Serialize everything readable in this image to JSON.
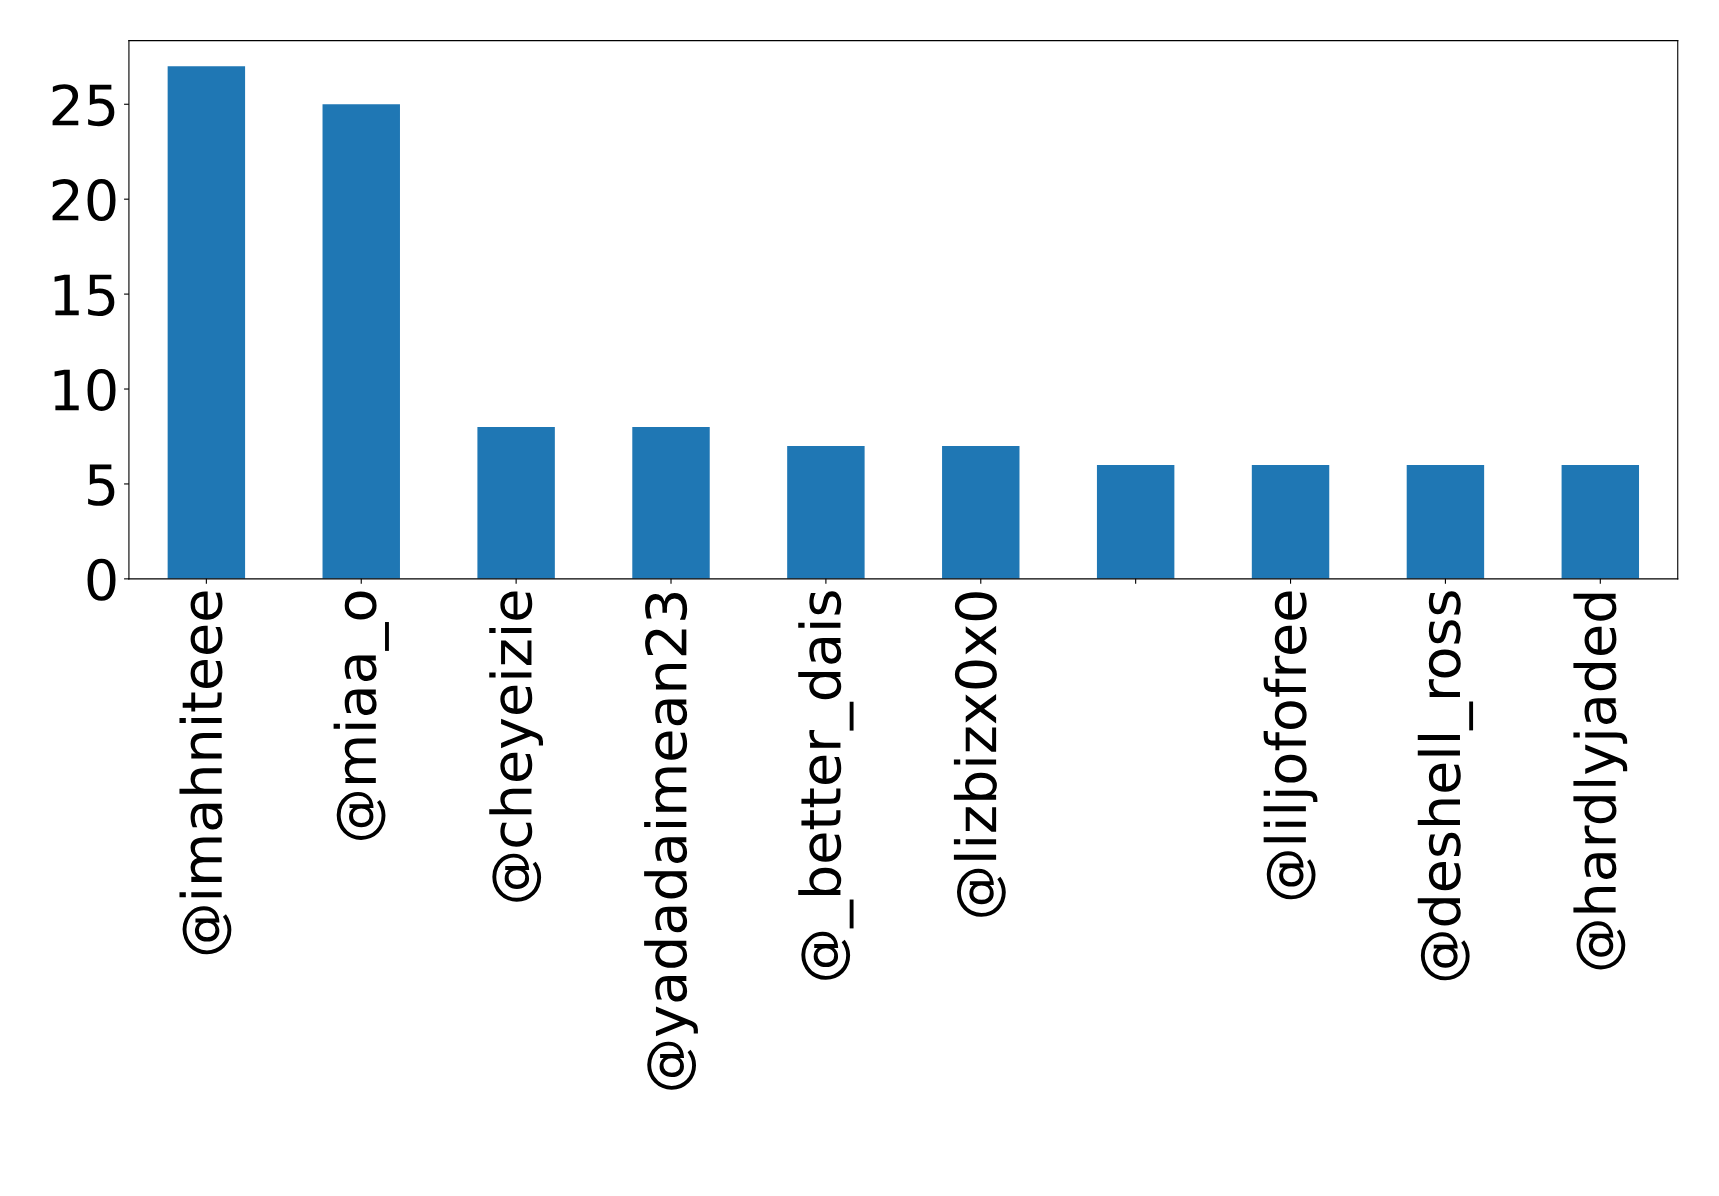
{
  "chart_data": {
    "type": "bar",
    "categories": [
      "@imahniteee",
      "@miaa_o",
      "@cheyeizie",
      "@yadadaimean23",
      "@_better_dais",
      "@lizbizx0x0",
      null,
      "@liljofofree",
      "@deshell_ross",
      "@hardlyjaded"
    ],
    "values": [
      27,
      25,
      8,
      8,
      7,
      7,
      6,
      6,
      6,
      6
    ],
    "color": "#1f77b4",
    "ylim": [
      0,
      28.35
    ],
    "yticks": [
      0,
      5,
      10,
      15,
      20,
      25
    ],
    "grid": false
  }
}
